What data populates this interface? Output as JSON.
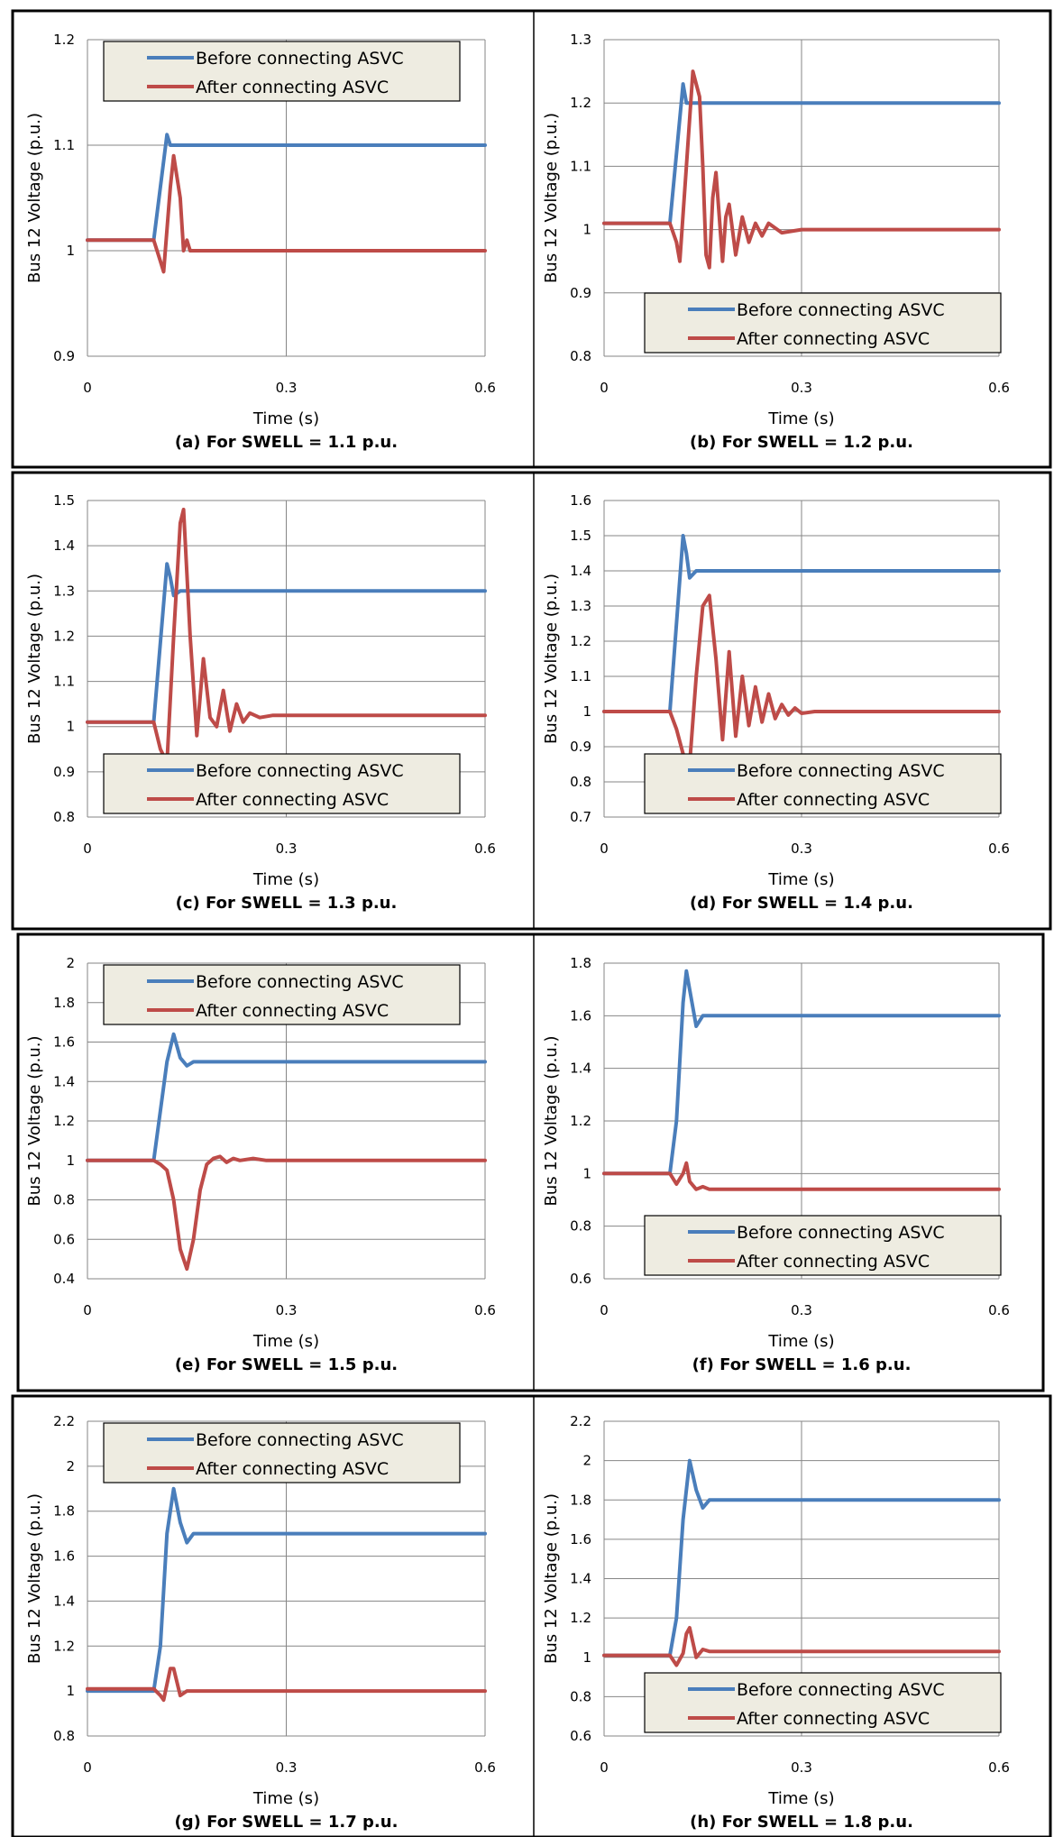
{
  "colors": {
    "before": "#4a7ebb",
    "after": "#be4b48",
    "grid": "#868686",
    "legend_bg": "#eeece1",
    "frame": "#000000"
  },
  "chart_data": [
    {
      "type": "line",
      "caption": "(a) For SWELL  = 1.1 p.u.",
      "xlabel": "Time (s)",
      "ylabel": "Bus 12 Voltage (p.u.)",
      "xlim": [
        0,
        0.6
      ],
      "ylim": [
        0.9,
        1.2
      ],
      "xticks": [
        0,
        0.3,
        0.6
      ],
      "yticks": [
        0.9,
        1,
        1.1,
        1.2
      ],
      "yformat": 1,
      "legend": "top",
      "series": [
        {
          "name": "Before connecting ASVC",
          "x": [
            0,
            0.1,
            0.12,
            0.125,
            0.13,
            0.14,
            0.16,
            0.6
          ],
          "y": [
            1.01,
            1.01,
            1.11,
            1.1,
            1.1,
            1.1,
            1.1,
            1.1
          ]
        },
        {
          "name": "After connecting ASVC",
          "x": [
            0,
            0.1,
            0.11,
            0.115,
            0.125,
            0.13,
            0.14,
            0.145,
            0.15,
            0.155,
            0.16,
            0.17,
            0.18,
            0.6
          ],
          "y": [
            1.01,
            1.01,
            0.99,
            0.98,
            1.06,
            1.09,
            1.05,
            1.0,
            1.01,
            1.0,
            1.0,
            1.0,
            1.0,
            1.0
          ]
        }
      ]
    },
    {
      "type": "line",
      "caption": "(b) For SWELL  = 1.2 p.u.",
      "xlabel": "Time (s)",
      "ylabel": "Bus 12 Voltage (p.u.)",
      "xlim": [
        0,
        0.6
      ],
      "ylim": [
        0.8,
        1.3
      ],
      "xticks": [
        0,
        0.3,
        0.6
      ],
      "yticks": [
        0.8,
        0.9,
        1,
        1.1,
        1.2,
        1.3
      ],
      "yformat": 1,
      "legend": "bottom",
      "series": [
        {
          "name": "Before connecting ASVC",
          "x": [
            0,
            0.1,
            0.12,
            0.125,
            0.13,
            0.14,
            0.6
          ],
          "y": [
            1.01,
            1.01,
            1.23,
            1.2,
            1.2,
            1.2,
            1.2
          ]
        },
        {
          "name": "After connecting ASVC",
          "x": [
            0,
            0.1,
            0.11,
            0.115,
            0.125,
            0.135,
            0.145,
            0.15,
            0.155,
            0.16,
            0.165,
            0.17,
            0.175,
            0.18,
            0.185,
            0.19,
            0.2,
            0.21,
            0.22,
            0.23,
            0.24,
            0.25,
            0.27,
            0.3,
            0.6
          ],
          "y": [
            1.01,
            1.01,
            0.98,
            0.95,
            1.1,
            1.25,
            1.21,
            1.1,
            0.96,
            0.94,
            1.05,
            1.09,
            1.02,
            0.95,
            1.02,
            1.04,
            0.96,
            1.02,
            0.98,
            1.01,
            0.99,
            1.01,
            0.995,
            1.0,
            1.0
          ]
        }
      ]
    },
    {
      "type": "line",
      "caption": "(c) For SWELL  = 1.3 p.u.",
      "xlabel": "Time (s)",
      "ylabel": "Bus 12 Voltage (p.u.)",
      "xlim": [
        0,
        0.6
      ],
      "ylim": [
        0.8,
        1.5
      ],
      "xticks": [
        0,
        0.3,
        0.6
      ],
      "yticks": [
        0.8,
        0.9,
        1,
        1.1,
        1.2,
        1.3,
        1.4,
        1.5
      ],
      "yformat": 1,
      "legend": "bottom",
      "series": [
        {
          "name": "Before connecting ASVC",
          "x": [
            0,
            0.1,
            0.12,
            0.125,
            0.13,
            0.14,
            0.16,
            0.6
          ],
          "y": [
            1.01,
            1.01,
            1.36,
            1.33,
            1.29,
            1.3,
            1.3,
            1.3
          ]
        },
        {
          "name": "After connecting ASVC",
          "x": [
            0,
            0.1,
            0.11,
            0.12,
            0.13,
            0.14,
            0.145,
            0.155,
            0.165,
            0.175,
            0.185,
            0.195,
            0.205,
            0.215,
            0.225,
            0.235,
            0.245,
            0.26,
            0.28,
            0.32,
            0.6
          ],
          "y": [
            1.01,
            1.01,
            0.95,
            0.92,
            1.2,
            1.45,
            1.48,
            1.2,
            0.98,
            1.15,
            1.02,
            1.0,
            1.08,
            0.99,
            1.05,
            1.01,
            1.03,
            1.02,
            1.025,
            1.025,
            1.025
          ]
        }
      ]
    },
    {
      "type": "line",
      "caption": "(d) For SWELL  = 1.4 p.u.",
      "xlabel": "Time (s)",
      "ylabel": "Bus 12 Voltage (p.u.)",
      "xlim": [
        0,
        0.6
      ],
      "ylim": [
        0.7,
        1.6
      ],
      "xticks": [
        0,
        0.3,
        0.6
      ],
      "yticks": [
        0.7,
        0.8,
        0.9,
        1,
        1.1,
        1.2,
        1.3,
        1.4,
        1.5,
        1.6
      ],
      "yformat": 1,
      "legend": "bottom",
      "series": [
        {
          "name": "Before connecting ASVC",
          "x": [
            0,
            0.1,
            0.12,
            0.125,
            0.13,
            0.14,
            0.15,
            0.6
          ],
          "y": [
            1.0,
            1.0,
            1.5,
            1.45,
            1.38,
            1.4,
            1.4,
            1.4
          ]
        },
        {
          "name": "After connecting ASVC",
          "x": [
            0,
            0.1,
            0.11,
            0.12,
            0.13,
            0.14,
            0.15,
            0.16,
            0.17,
            0.18,
            0.19,
            0.2,
            0.21,
            0.22,
            0.23,
            0.24,
            0.25,
            0.26,
            0.27,
            0.28,
            0.29,
            0.3,
            0.32,
            0.6
          ],
          "y": [
            1.0,
            1.0,
            0.95,
            0.88,
            0.85,
            1.1,
            1.3,
            1.33,
            1.15,
            0.92,
            1.17,
            0.93,
            1.1,
            0.96,
            1.07,
            0.97,
            1.05,
            0.98,
            1.02,
            0.99,
            1.01,
            0.995,
            1.0,
            1.0
          ]
        }
      ]
    },
    {
      "type": "line",
      "caption": "(e) For SWELL  = 1.5 p.u.",
      "xlabel": "Time (s)",
      "ylabel": "Bus 12 Voltage (p.u.)",
      "xlim": [
        0,
        0.6
      ],
      "ylim": [
        0.4,
        2
      ],
      "xticks": [
        0,
        0.3,
        0.6
      ],
      "yticks": [
        0.4,
        0.6,
        0.8,
        1,
        1.2,
        1.4,
        1.6,
        1.8,
        2
      ],
      "yformat": 1,
      "legend": "top",
      "series": [
        {
          "name": "Before connecting ASVC",
          "x": [
            0,
            0.1,
            0.12,
            0.13,
            0.14,
            0.15,
            0.16,
            0.6
          ],
          "y": [
            1.0,
            1.0,
            1.5,
            1.64,
            1.52,
            1.48,
            1.5,
            1.5
          ]
        },
        {
          "name": "After connecting ASVC",
          "x": [
            0,
            0.1,
            0.11,
            0.12,
            0.13,
            0.14,
            0.15,
            0.16,
            0.17,
            0.18,
            0.19,
            0.2,
            0.21,
            0.22,
            0.23,
            0.25,
            0.27,
            0.3,
            0.6
          ],
          "y": [
            1.0,
            1.0,
            0.98,
            0.95,
            0.8,
            0.55,
            0.45,
            0.6,
            0.85,
            0.98,
            1.01,
            1.02,
            0.99,
            1.01,
            1.0,
            1.01,
            1.0,
            1.0,
            1.0
          ]
        }
      ]
    },
    {
      "type": "line",
      "caption": "(f) For SWELL  = 1.6 p.u.",
      "xlabel": "Time (s)",
      "ylabel": "Bus 12 Voltage (p.u.)",
      "xlim": [
        0,
        0.6
      ],
      "ylim": [
        0.6,
        1.8
      ],
      "xticks": [
        0,
        0.3,
        0.6
      ],
      "yticks": [
        0.6,
        0.8,
        1,
        1.2,
        1.4,
        1.6,
        1.8
      ],
      "yformat": 1,
      "legend": "bottom",
      "series": [
        {
          "name": "Before connecting ASVC",
          "x": [
            0,
            0.1,
            0.11,
            0.12,
            0.125,
            0.13,
            0.14,
            0.15,
            0.16,
            0.6
          ],
          "y": [
            1.0,
            1.0,
            1.2,
            1.65,
            1.77,
            1.7,
            1.56,
            1.6,
            1.6,
            1.6
          ]
        },
        {
          "name": "After connecting ASVC",
          "x": [
            0,
            0.1,
            0.11,
            0.12,
            0.125,
            0.13,
            0.14,
            0.15,
            0.16,
            0.6
          ],
          "y": [
            1.0,
            1.0,
            0.96,
            1.0,
            1.04,
            0.97,
            0.94,
            0.95,
            0.94,
            0.94
          ]
        }
      ]
    },
    {
      "type": "line",
      "caption": "(g) For SWELL  = 1.7 p.u.",
      "xlabel": "Time (s)",
      "ylabel": "Bus 12 Voltage (p.u.)",
      "xlim": [
        0,
        0.6
      ],
      "ylim": [
        0.8,
        2.2
      ],
      "xticks": [
        0,
        0.3,
        0.6
      ],
      "yticks": [
        0.8,
        1,
        1.2,
        1.4,
        1.6,
        1.8,
        2,
        2.2
      ],
      "yformat": 1,
      "legend": "top",
      "series": [
        {
          "name": "Before connecting ASVC",
          "x": [
            0,
            0.1,
            0.11,
            0.12,
            0.13,
            0.14,
            0.15,
            0.16,
            0.17,
            0.6
          ],
          "y": [
            1.0,
            1.0,
            1.2,
            1.7,
            1.9,
            1.75,
            1.66,
            1.7,
            1.7,
            1.7
          ]
        },
        {
          "name": "After connecting ASVC",
          "x": [
            0,
            0.1,
            0.11,
            0.115,
            0.125,
            0.13,
            0.14,
            0.145,
            0.15,
            0.16,
            0.6
          ],
          "y": [
            1.01,
            1.01,
            0.98,
            0.96,
            1.1,
            1.1,
            0.98,
            0.99,
            1.0,
            1.0,
            1.0
          ]
        }
      ]
    },
    {
      "type": "line",
      "caption": "(h) For SWELL  = 1.8 p.u.",
      "xlabel": "Time (s)",
      "ylabel": "Bus 12 Voltage (p.u.)",
      "xlim": [
        0,
        0.6
      ],
      "ylim": [
        0.6,
        2.2
      ],
      "xticks": [
        0,
        0.3,
        0.6
      ],
      "yticks": [
        0.6,
        0.8,
        1,
        1.2,
        1.4,
        1.6,
        1.8,
        2,
        2.2
      ],
      "yformat": 1,
      "legend": "bottom",
      "series": [
        {
          "name": "Before connecting ASVC",
          "x": [
            0,
            0.1,
            0.11,
            0.12,
            0.13,
            0.14,
            0.15,
            0.16,
            0.17,
            0.6
          ],
          "y": [
            1.01,
            1.01,
            1.2,
            1.7,
            2.0,
            1.85,
            1.76,
            1.8,
            1.8,
            1.8
          ]
        },
        {
          "name": "After connecting ASVC",
          "x": [
            0,
            0.1,
            0.11,
            0.12,
            0.125,
            0.13,
            0.14,
            0.15,
            0.16,
            0.6
          ],
          "y": [
            1.01,
            1.01,
            0.96,
            1.02,
            1.12,
            1.15,
            1.0,
            1.04,
            1.03,
            1.03
          ]
        }
      ]
    }
  ]
}
